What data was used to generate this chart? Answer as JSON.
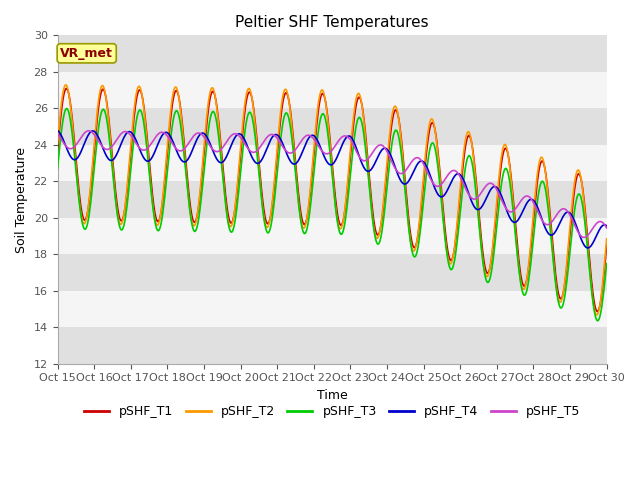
{
  "title": "Peltier SHF Temperatures",
  "xlabel": "Time",
  "ylabel": "Soil Temperature",
  "ylim": [
    12,
    30
  ],
  "xtick_labels": [
    "Oct 15",
    "Oct 16",
    "Oct 17",
    "Oct 18",
    "Oct 19",
    "Oct 20",
    "Oct 21",
    "Oct 22",
    "Oct 23",
    "Oct 24",
    "Oct 25",
    "Oct 26",
    "Oct 27",
    "Oct 28",
    "Oct 29",
    "Oct 30"
  ],
  "annotation": "VR_met",
  "colors": {
    "T1": "#cc0000",
    "T2": "#ff9900",
    "T3": "#00cc00",
    "T4": "#0000cc",
    "T5": "#cc44cc"
  },
  "legend_labels": [
    "pSHF_T1",
    "pSHF_T2",
    "pSHF_T3",
    "pSHF_T4",
    "pSHF_T5"
  ],
  "bg_band_color": "#e0e0e0",
  "bg_white_color": "#f5f5f5",
  "title_fontsize": 11,
  "axis_label_fontsize": 9,
  "tick_fontsize": 8,
  "legend_fontsize": 9
}
